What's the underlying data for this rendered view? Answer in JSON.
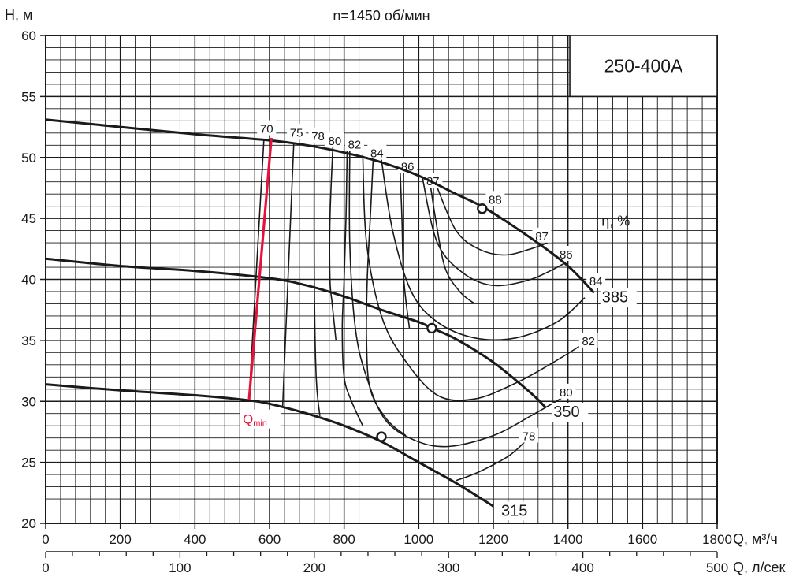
{
  "chart_data": {
    "type": "line",
    "title": "n=1450 об/мин",
    "model": "250-400A",
    "ylabel": "H, м",
    "xlabel": "Q, м³/ч",
    "xlabel2": "Q, л/сек",
    "xlim": [
      0,
      1800
    ],
    "ylim": [
      20,
      60
    ],
    "x2lim": [
      0,
      500
    ],
    "xticks": [
      0,
      200,
      400,
      600,
      800,
      1000,
      1200,
      1400,
      1600,
      1800
    ],
    "x2ticks": [
      0,
      100,
      200,
      300,
      400,
      500
    ],
    "yticks": [
      20,
      25,
      30,
      35,
      40,
      45,
      50,
      55,
      60
    ],
    "grid": true,
    "eff_label": "η, %",
    "qmin_label": "Q",
    "qmin_sub": "min",
    "series": [
      {
        "name": "385",
        "x": [
          0,
          200,
          400,
          600,
          700,
          800,
          900,
          1000,
          1100,
          1180,
          1300,
          1400,
          1470
        ],
        "y": [
          53.1,
          52.5,
          51.9,
          51.4,
          51.0,
          50.4,
          49.6,
          48.5,
          47.0,
          45.8,
          43.4,
          41.1,
          38.9
        ]
      },
      {
        "name": "350",
        "x": [
          0,
          200,
          400,
          600,
          700,
          800,
          900,
          1000,
          1035,
          1100,
          1200,
          1300,
          1340
        ],
        "y": [
          41.7,
          41.1,
          40.7,
          40.1,
          39.5,
          38.6,
          37.5,
          36.5,
          36.0,
          35.1,
          33.2,
          30.7,
          29.5
        ]
      },
      {
        "name": "315",
        "x": [
          0,
          200,
          400,
          540,
          600,
          700,
          800,
          900,
          1000,
          1100,
          1200
        ],
        "y": [
          31.4,
          30.9,
          30.5,
          30.1,
          29.8,
          29.0,
          28.0,
          26.7,
          25.0,
          23.3,
          21.4
        ]
      }
    ],
    "bep_points": [
      {
        "x": 1170,
        "y": 45.8
      },
      {
        "x": 1035,
        "y": 36.0
      },
      {
        "x": 900,
        "y": 27.1
      }
    ],
    "efficiency_contours": [
      {
        "label": "70",
        "label_at": [
          592,
          52.4
        ],
        "points": [
          [
            545,
            30.1
          ],
          [
            585,
            51.5
          ]
        ]
      },
      {
        "label": "75",
        "label_at": [
          672,
          52.1
        ],
        "points": [
          [
            635,
            29.5
          ],
          [
            665,
            51.2
          ]
        ]
      },
      {
        "label": "78",
        "label_at": [
          730,
          51.8
        ],
        "points": [
          [
            735,
            28.8
          ],
          [
            725,
            32
          ],
          [
            720,
            40
          ],
          [
            720,
            51.0
          ]
        ]
      },
      {
        "label": "80",
        "label_at": [
          775,
          51.4
        ],
        "points": [
          [
            770,
            51.0
          ],
          [
            762,
            45
          ],
          [
            762,
            40
          ],
          [
            768,
            38
          ],
          [
            778,
            35
          ]
        ]
      },
      {
        "label": "82",
        "label_at": [
          828,
          51.1
        ],
        "points": [
          [
            808,
            50.6
          ],
          [
            805,
            45
          ],
          [
            800,
            40
          ],
          [
            795,
            36
          ],
          [
            800,
            32
          ],
          [
            820,
            30
          ],
          [
            850,
            28
          ]
        ]
      },
      {
        "label": "84",
        "label_at": [
          888,
          50.4
        ],
        "points": [
          [
            878,
            50.0
          ],
          [
            870,
            45
          ],
          [
            862,
            40
          ],
          [
            860,
            35
          ],
          [
            870,
            31
          ],
          [
            915,
            28.5
          ],
          [
            965,
            27.2
          ]
        ]
      },
      {
        "label": "86",
        "label_at": [
          970,
          49.3
        ],
        "points": [
          [
            950,
            49.0
          ],
          [
            955,
            45
          ],
          [
            960,
            40
          ],
          [
            975,
            36
          ]
        ]
      },
      {
        "label": "87",
        "label_at": [
          1038,
          48.1
        ],
        "points": [
          [
            1030,
            48.0
          ],
          [
            1045,
            45
          ],
          [
            1070,
            41
          ],
          [
            1110,
            39
          ],
          [
            1150,
            38
          ]
        ]
      },
      {
        "label": "88",
        "label_at": [
          1205,
          46.6
        ],
        "points": [
          [
            1170,
            45.8
          ]
        ]
      },
      {
        "label": "87",
        "label_at": [
          1330,
          43.6
        ],
        "points": [
          [
            1050,
            47.5
          ],
          [
            1100,
            44
          ],
          [
            1160,
            42.5
          ],
          [
            1230,
            42
          ],
          [
            1300,
            42.5
          ],
          [
            1345,
            43.0
          ]
        ]
      },
      {
        "label": "86",
        "label_at": [
          1395,
          42.1
        ],
        "points": [
          [
            1010,
            48.3
          ],
          [
            1050,
            43
          ],
          [
            1120,
            40.5
          ],
          [
            1200,
            39.5
          ],
          [
            1300,
            40
          ],
          [
            1390,
            41.3
          ]
        ]
      },
      {
        "label": "84",
        "label_at": [
          1475,
          39.9
        ],
        "points": [
          [
            900,
            49.8
          ],
          [
            930,
            44
          ],
          [
            980,
            39
          ],
          [
            1050,
            36.5
          ],
          [
            1150,
            35.2
          ],
          [
            1260,
            35.2
          ],
          [
            1370,
            36.5
          ],
          [
            1445,
            38.5
          ]
        ]
      },
      {
        "label": "82",
        "label_at": [
          1455,
          35.0
        ],
        "points": [
          [
            850,
            50.2
          ],
          [
            860,
            43
          ],
          [
            900,
            37
          ],
          [
            960,
            33.5
          ],
          [
            1050,
            30.5
          ],
          [
            1150,
            30.2
          ],
          [
            1260,
            31.5
          ],
          [
            1350,
            33
          ],
          [
            1430,
            34.5
          ]
        ]
      },
      {
        "label": "80",
        "label_at": [
          1395,
          30.8
        ],
        "points": [
          [
            815,
            50.5
          ],
          [
            815,
            43
          ],
          [
            830,
            36
          ],
          [
            860,
            32
          ],
          [
            910,
            28.5
          ],
          [
            990,
            26.8
          ],
          [
            1080,
            26.3
          ],
          [
            1200,
            27.2
          ],
          [
            1300,
            28.8
          ],
          [
            1385,
            30.3
          ]
        ]
      },
      {
        "label": "78",
        "label_at": [
          1295,
          27.2
        ],
        "points": [
          [
            1100,
            23.5
          ],
          [
            1160,
            24.2
          ],
          [
            1240,
            25.5
          ],
          [
            1285,
            26.7
          ]
        ]
      }
    ],
    "qmin_line": {
      "points": [
        [
          545,
          30.1
        ],
        [
          605,
          51.6
        ]
      ],
      "color": "#e3143c"
    },
    "colors": {
      "grid": "#1a1a1a",
      "curve": "#1a1a1a",
      "qmin": "#e3143c"
    }
  }
}
